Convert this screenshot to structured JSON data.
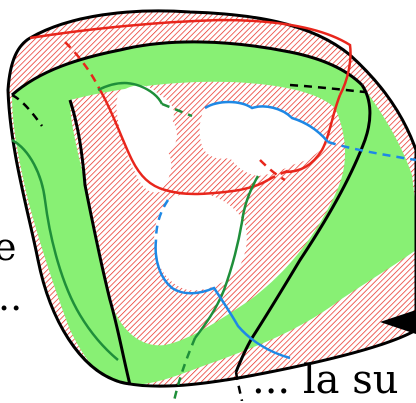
{
  "labels": {
    "left_upper": "e",
    "left_lower": "..",
    "bottom_right": "... la su"
  },
  "colors": {
    "fill_green": "#88f074",
    "hatch_red": "#e8261c",
    "boundary_black": "#000000",
    "curve_red": "#e8261c",
    "curve_green": "#1f8f3a",
    "curve_blue": "#1e88e5"
  },
  "regions": [
    "green-band",
    "hatched-red-region",
    "white-hole-left",
    "white-hole-right",
    "white-hole-bottom"
  ]
}
